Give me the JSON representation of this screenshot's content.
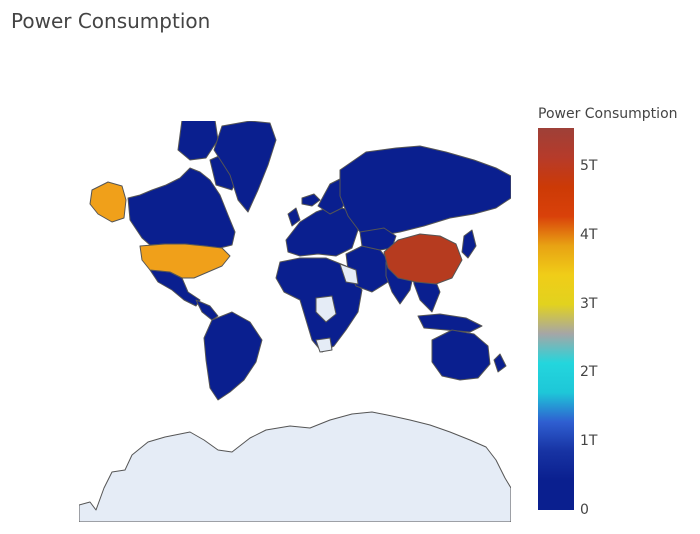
{
  "title": "Power Consumption",
  "colorbar": {
    "title": "Power Consumption",
    "ticks": [
      "5T",
      "4T",
      "3T",
      "2T",
      "1T",
      "0"
    ],
    "tick_values_trillions": [
      5,
      4,
      3,
      2,
      1,
      0
    ],
    "range_trillions": [
      0,
      5.55
    ],
    "colors": [
      "#0a1f8f",
      "#0a1f8f",
      "#1733a3",
      "#2f5fd1",
      "#1ec7d8",
      "#23d6dd",
      "#a6a6a6",
      "#e2d21e",
      "#f0cd18",
      "#e8a213",
      "#d9410a",
      "#cc3a06",
      "#b63b2a",
      "#9e4038"
    ]
  },
  "map": {
    "land_color": "#0a1f8f",
    "border_color": "#555555",
    "antarctica_color": "#e5ecf6",
    "no_data_color": "#e5ecf6",
    "highlighted": [
      {
        "region": "China",
        "color": "#b63b1f",
        "value_trillions": 5.3
      },
      {
        "region": "United States",
        "color": "#f0a01a",
        "value_trillions": 3.9
      },
      {
        "region": "Alaska",
        "color": "#f0a01a",
        "value_trillions": 3.9
      }
    ]
  }
}
